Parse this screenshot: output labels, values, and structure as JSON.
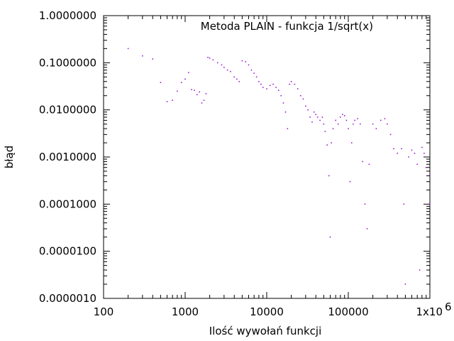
{
  "chart_data": {
    "type": "scatter",
    "title": "",
    "xlabel": "Ilość wywołań funkcji",
    "ylabel": "błąd",
    "x_scale": "log",
    "y_scale": "log",
    "xlim": [
      100,
      1000000
    ],
    "ylim": [
      1e-06,
      1
    ],
    "grid": false,
    "legend_position": "top-right",
    "x_ticks": [
      {
        "value": 100,
        "label": "100"
      },
      {
        "value": 1000,
        "label": "1000"
      },
      {
        "value": 10000,
        "label": "10000"
      },
      {
        "value": 100000,
        "label": "100000"
      },
      {
        "value": 1000000,
        "label": "1x10",
        "exponent": "6"
      }
    ],
    "y_ticks": [
      {
        "value": 1,
        "label": "1.0000000"
      },
      {
        "value": 0.1,
        "label": "0.1000000"
      },
      {
        "value": 0.01,
        "label": "0.0100000"
      },
      {
        "value": 0.001,
        "label": "0.0010000"
      },
      {
        "value": 0.0001,
        "label": "0.0001000"
      },
      {
        "value": 1e-05,
        "label": "0.0000100"
      },
      {
        "value": 1e-06,
        "label": "0.0000010"
      }
    ],
    "series": [
      {
        "name": "Metoda PLAIN - funkcja 1/sqrt(x)",
        "color": "#9400d3",
        "points": [
          [
            200,
            0.2
          ],
          [
            300,
            0.14
          ],
          [
            400,
            0.12
          ],
          [
            500,
            0.038
          ],
          [
            600,
            0.015
          ],
          [
            700,
            0.016
          ],
          [
            800,
            0.025
          ],
          [
            900,
            0.038
          ],
          [
            1000,
            0.045
          ],
          [
            1100,
            0.062
          ],
          [
            1200,
            0.027
          ],
          [
            1300,
            0.026
          ],
          [
            1400,
            0.021
          ],
          [
            1500,
            0.024
          ],
          [
            1600,
            0.014
          ],
          [
            1700,
            0.016
          ],
          [
            1800,
            0.022
          ],
          [
            1900,
            0.13
          ],
          [
            2000,
            0.125
          ],
          [
            2200,
            0.115
          ],
          [
            2500,
            0.1
          ],
          [
            2800,
            0.09
          ],
          [
            3000,
            0.08
          ],
          [
            3300,
            0.07
          ],
          [
            3600,
            0.065
          ],
          [
            4000,
            0.05
          ],
          [
            4300,
            0.045
          ],
          [
            4600,
            0.04
          ],
          [
            5000,
            0.11
          ],
          [
            5500,
            0.105
          ],
          [
            6000,
            0.09
          ],
          [
            6500,
            0.07
          ],
          [
            7000,
            0.06
          ],
          [
            7500,
            0.05
          ],
          [
            8000,
            0.04
          ],
          [
            8500,
            0.035
          ],
          [
            9000,
            0.03
          ],
          [
            10000,
            0.028
          ],
          [
            11000,
            0.033
          ],
          [
            12000,
            0.035
          ],
          [
            13000,
            0.03
          ],
          [
            14000,
            0.026
          ],
          [
            15000,
            0.02
          ],
          [
            16000,
            0.014
          ],
          [
            17000,
            0.009
          ],
          [
            18000,
            0.004
          ],
          [
            19000,
            0.035
          ],
          [
            20000,
            0.04
          ],
          [
            22000,
            0.035
          ],
          [
            24000,
            0.028
          ],
          [
            26000,
            0.02
          ],
          [
            28000,
            0.017
          ],
          [
            30000,
            0.012
          ],
          [
            32000,
            0.01
          ],
          [
            34000,
            0.007
          ],
          [
            36000,
            0.0055
          ],
          [
            38000,
            0.009
          ],
          [
            40000,
            0.008
          ],
          [
            42000,
            0.007
          ],
          [
            45000,
            0.006
          ],
          [
            48000,
            0.007
          ],
          [
            50000,
            0.005
          ],
          [
            52000,
            0.0035
          ],
          [
            55000,
            0.0018
          ],
          [
            58000,
            0.0004
          ],
          [
            60000,
            2e-05
          ],
          [
            62000,
            0.002
          ],
          [
            65000,
            0.004
          ],
          [
            70000,
            0.006
          ],
          [
            75000,
            0.005
          ],
          [
            80000,
            0.007
          ],
          [
            85000,
            0.008
          ],
          [
            90000,
            0.0075
          ],
          [
            95000,
            0.006
          ],
          [
            100000,
            0.004
          ],
          [
            105000,
            0.0003
          ],
          [
            110000,
            0.002
          ],
          [
            115000,
            0.005
          ],
          [
            120000,
            0.006
          ],
          [
            130000,
            0.0065
          ],
          [
            140000,
            0.005
          ],
          [
            150000,
            0.0008
          ],
          [
            160000,
            0.0001
          ],
          [
            170000,
            3e-05
          ],
          [
            180000,
            0.0007
          ],
          [
            200000,
            0.005
          ],
          [
            220000,
            0.004
          ],
          [
            250000,
            0.006
          ],
          [
            280000,
            0.0065
          ],
          [
            300000,
            0.005
          ],
          [
            330000,
            0.003
          ],
          [
            360000,
            0.0015
          ],
          [
            400000,
            0.0012
          ],
          [
            450000,
            0.0015
          ],
          [
            480000,
            0.0001
          ],
          [
            500000,
            2e-06
          ],
          [
            550000,
            0.001
          ],
          [
            600000,
            0.0014
          ],
          [
            650000,
            0.0012
          ],
          [
            700000,
            0.0007
          ],
          [
            750000,
            4e-06
          ],
          [
            800000,
            0.0016
          ],
          [
            850000,
            0.0012
          ],
          [
            900000,
            0.0006
          ],
          [
            950000,
            0.0004
          ],
          [
            1000000,
            0.0001
          ]
        ]
      }
    ]
  }
}
